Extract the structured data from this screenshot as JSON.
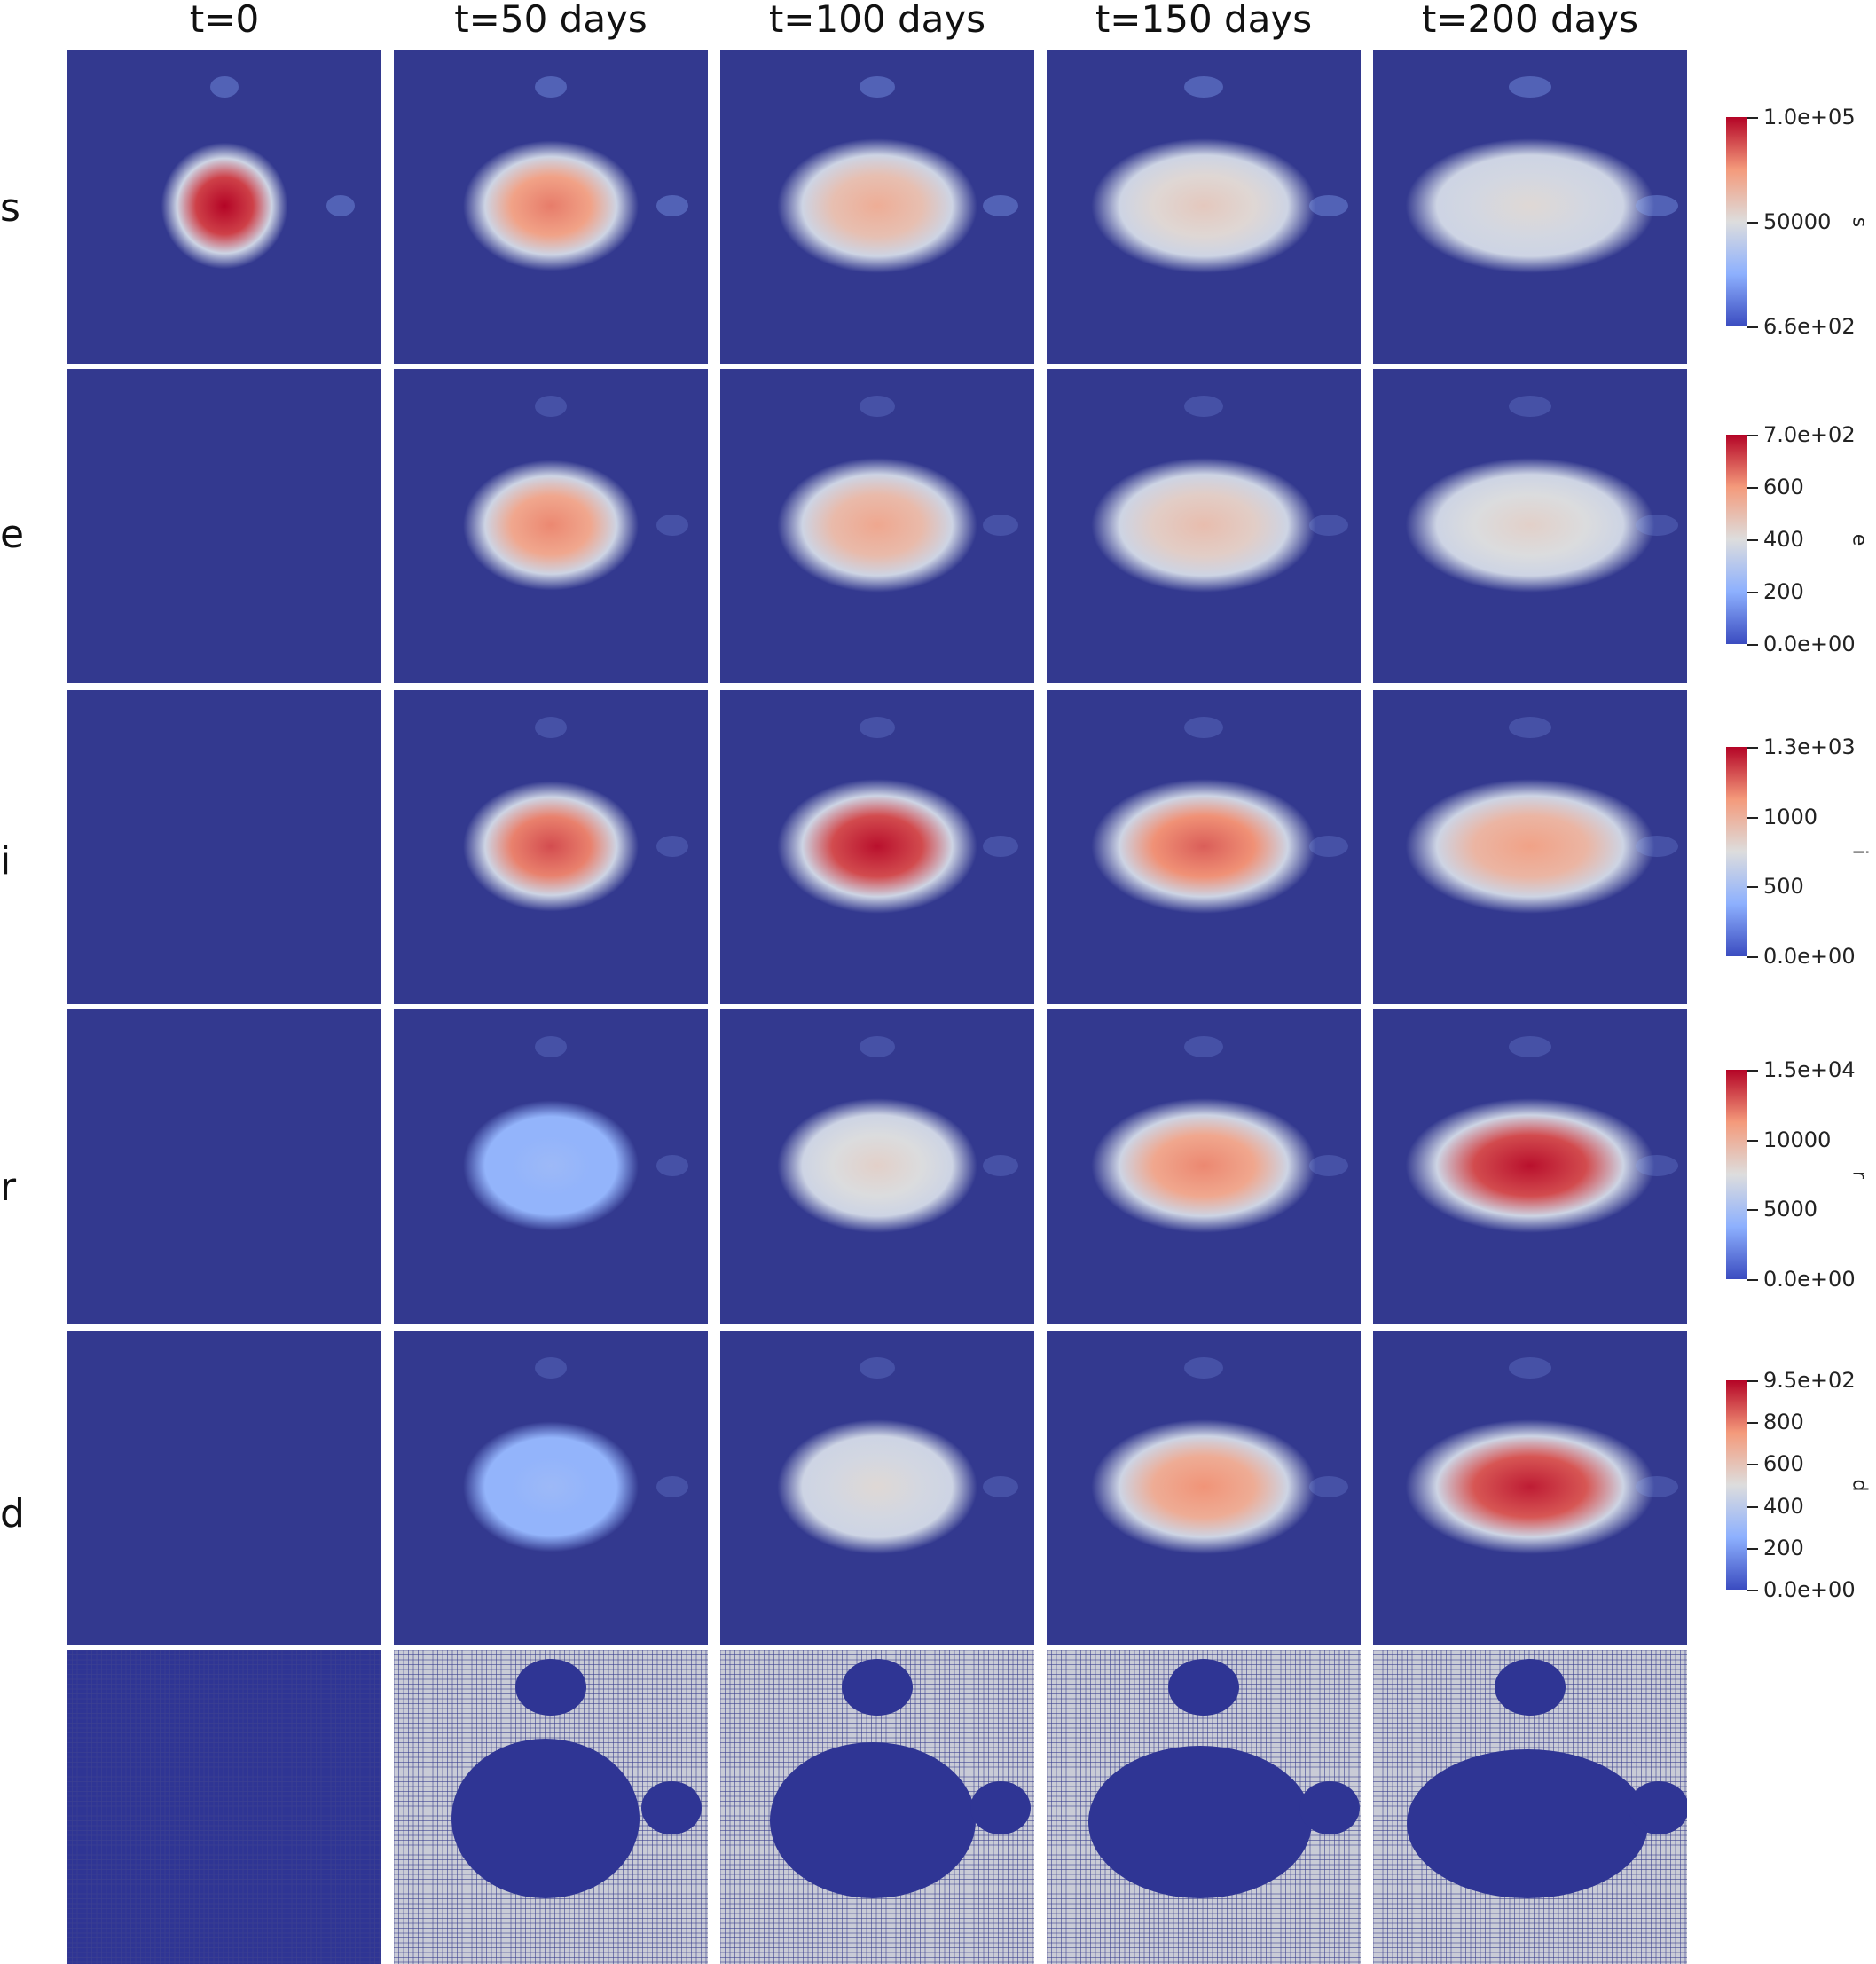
{
  "columns": [
    "t=0",
    "t=50 days",
    "t=100 days",
    "t=150 days",
    "t=200 days"
  ],
  "rows": [
    {
      "label": "s",
      "colorbar": {
        "title": "s",
        "ticks": [
          "1.0e+05",
          "50000",
          "6.6e+02"
        ]
      }
    },
    {
      "label": "e",
      "colorbar": {
        "title": "e",
        "ticks": [
          "7.0e+02",
          "600",
          "400",
          "200",
          "0.0e+00"
        ]
      }
    },
    {
      "label": "i",
      "colorbar": {
        "title": "i",
        "ticks": [
          "1.3e+03",
          "1000",
          "500",
          "0.0e+00"
        ]
      }
    },
    {
      "label": "r",
      "colorbar": {
        "title": "r",
        "ticks": [
          "1.5e+04",
          "10000",
          "5000",
          "0.0e+00"
        ]
      }
    },
    {
      "label": "d",
      "colorbar": {
        "title": "d",
        "ticks": [
          "9.5e+02",
          "800",
          "600",
          "400",
          "200",
          "0.0e+00"
        ]
      }
    },
    {
      "label": "",
      "colorbar": null
    }
  ],
  "colors": {
    "background_field": "#33398f",
    "colormap": [
      "#3b4cc0",
      "#8db0fe",
      "#dddddd",
      "#f49a7b",
      "#b40426"
    ],
    "mesh_fill": "#c9cbd6",
    "mesh_line": "#3d4290"
  }
}
